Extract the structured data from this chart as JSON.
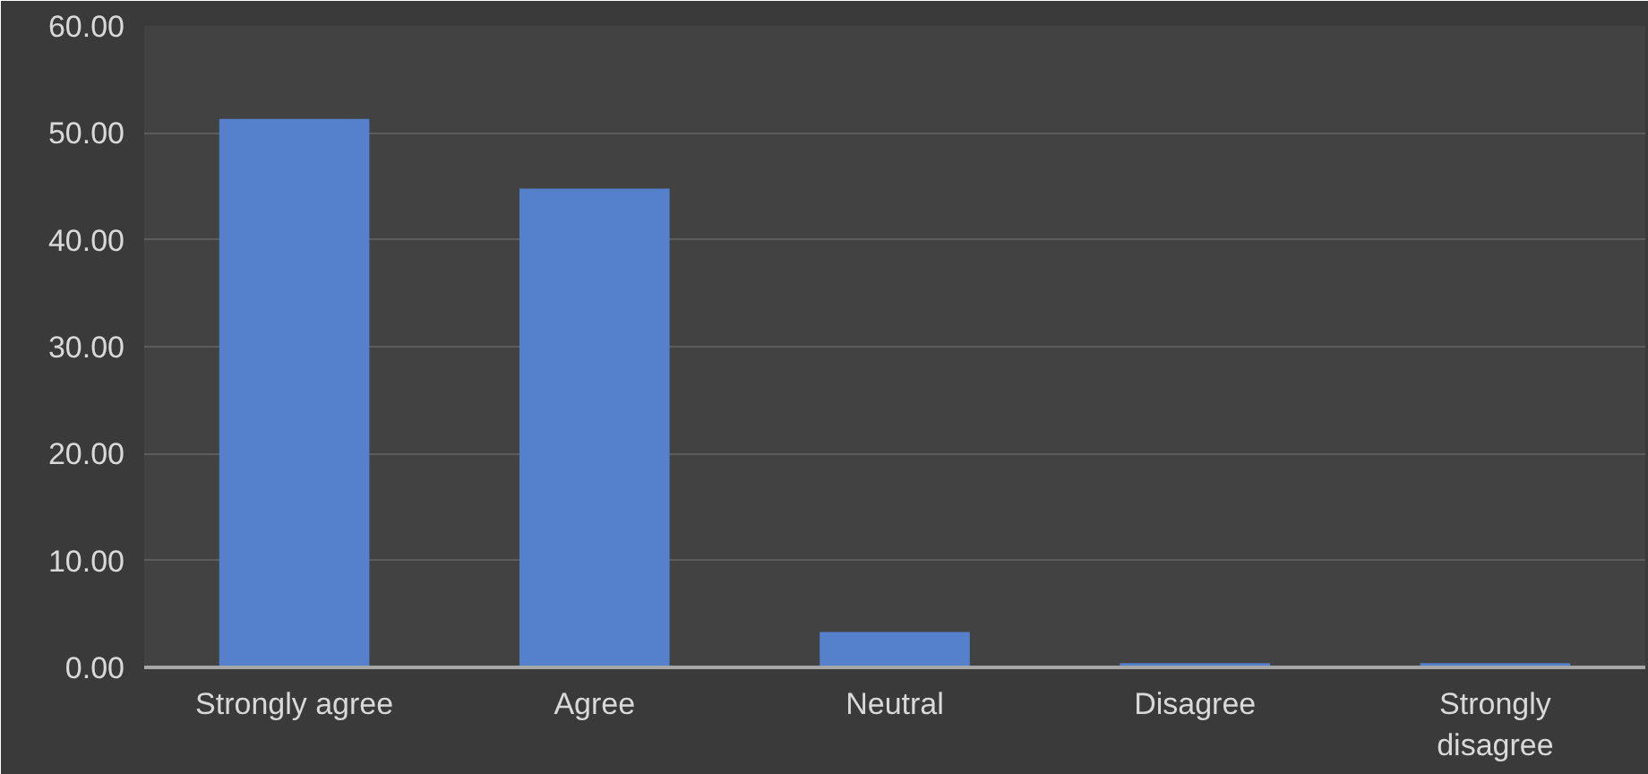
{
  "chart_data": {
    "type": "bar",
    "categories": [
      "Strongly agree",
      "Agree",
      "Neutral",
      "Disagree",
      "Strongly disagree"
    ],
    "values": [
      51.3,
      44.8,
      3.3,
      0.4,
      0.4
    ],
    "color": "#5580cc",
    "ylim": [
      0,
      60
    ],
    "yticks": [
      {
        "value": 0,
        "label": "0.00"
      },
      {
        "value": 10,
        "label": "10.00"
      },
      {
        "value": 20,
        "label": "20.00"
      },
      {
        "value": 30,
        "label": "30.00"
      },
      {
        "value": 40,
        "label": "40.00"
      },
      {
        "value": 50,
        "label": "50.00"
      },
      {
        "value": 60,
        "label": "60.00"
      }
    ],
    "grid": "y"
  }
}
